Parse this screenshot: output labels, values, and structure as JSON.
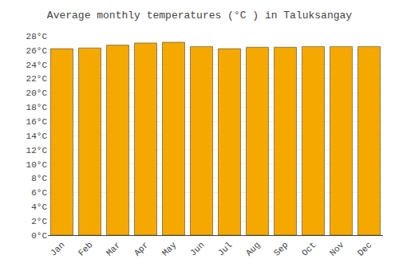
{
  "chart_data": {
    "type": "bar",
    "title": "Average monthly temperatures (°C ) in Taluksangay",
    "categories": [
      "Jan",
      "Feb",
      "Mar",
      "Apr",
      "May",
      "Jun",
      "Jul",
      "Aug",
      "Sep",
      "Oct",
      "Nov",
      "Dec"
    ],
    "values": [
      26.2,
      26.3,
      26.7,
      27.0,
      27.1,
      26.5,
      26.2,
      26.4,
      26.4,
      26.5,
      26.5,
      26.5
    ],
    "color": "#F5A800",
    "ylim": [
      0,
      28
    ],
    "yticks": [
      {
        "value": 0,
        "label": "0°C"
      },
      {
        "value": 2,
        "label": "2°C"
      },
      {
        "value": 4,
        "label": "4°C"
      },
      {
        "value": 6,
        "label": "6°C"
      },
      {
        "value": 8,
        "label": "8°C"
      },
      {
        "value": 10,
        "label": "10°C"
      },
      {
        "value": 12,
        "label": "12°C"
      },
      {
        "value": 14,
        "label": "14°C"
      },
      {
        "value": 16,
        "label": "16°C"
      },
      {
        "value": 18,
        "label": "18°C"
      },
      {
        "value": 20,
        "label": "20°C"
      },
      {
        "value": 22,
        "label": "22°C"
      },
      {
        "value": 24,
        "label": "24°C"
      },
      {
        "value": 26,
        "label": "26°C"
      },
      {
        "value": 28,
        "label": "28°C"
      }
    ],
    "grid": true
  }
}
